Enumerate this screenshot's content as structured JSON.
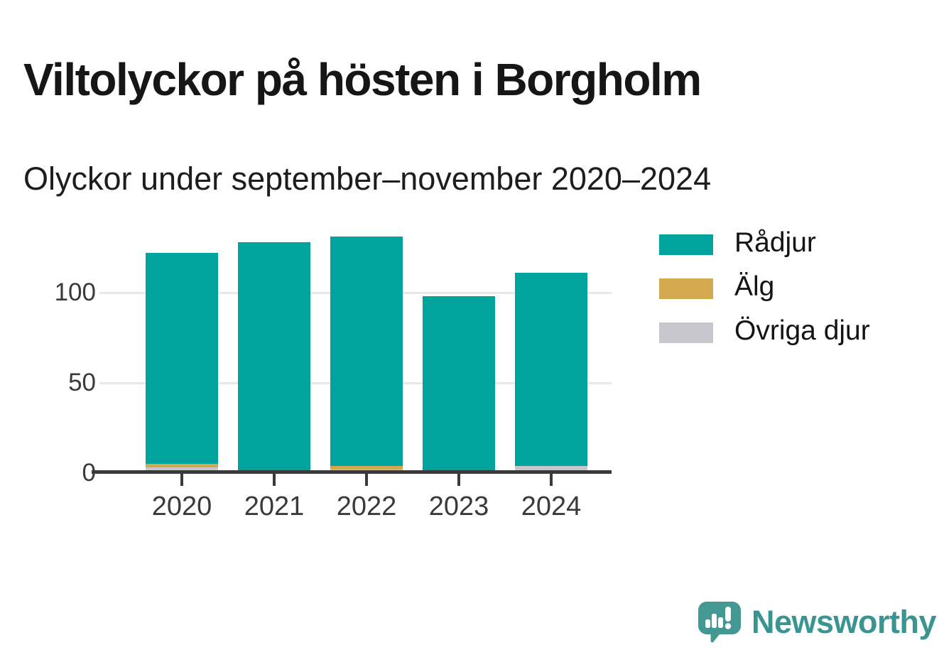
{
  "header": {
    "title": "Viltolyckor på hösten i Borgholm",
    "subtitle": "Olyckor under september–november 2020–2024"
  },
  "chart_data": {
    "type": "bar",
    "stacked": true,
    "title": "Viltolyckor på hösten i Borgholm",
    "subtitle": "Olyckor under september–november 2020–2024",
    "categories": [
      "2020",
      "2021",
      "2022",
      "2023",
      "2024"
    ],
    "series": [
      {
        "name": "Rådjur",
        "color": "#00a49c",
        "values": [
          117,
          128,
          127,
          98,
          107
        ]
      },
      {
        "name": "Älg",
        "color": "#d4a84f",
        "values": [
          2,
          0,
          2,
          0,
          0
        ]
      },
      {
        "name": "Övriga djur",
        "color": "#c8c7ce",
        "values": [
          3,
          0,
          2,
          0,
          4
        ]
      }
    ],
    "stack_order_bottom_up": [
      "Övriga djur",
      "Älg",
      "Rådjur"
    ],
    "totals": [
      122,
      128,
      131,
      98,
      111
    ],
    "xlabel": "",
    "ylabel": "",
    "yticks": [
      0,
      50,
      100
    ],
    "yticklabels": [
      "0",
      "50",
      "100"
    ],
    "ylim": [
      0,
      140
    ],
    "grid": "horizontal",
    "legend_position": "right",
    "axis_color": "#3a3a3a",
    "grid_color": "#e9e9e9"
  },
  "branding": {
    "name": "Newsworthy",
    "text_color": "#3a948f",
    "logo_color": "#449894"
  }
}
